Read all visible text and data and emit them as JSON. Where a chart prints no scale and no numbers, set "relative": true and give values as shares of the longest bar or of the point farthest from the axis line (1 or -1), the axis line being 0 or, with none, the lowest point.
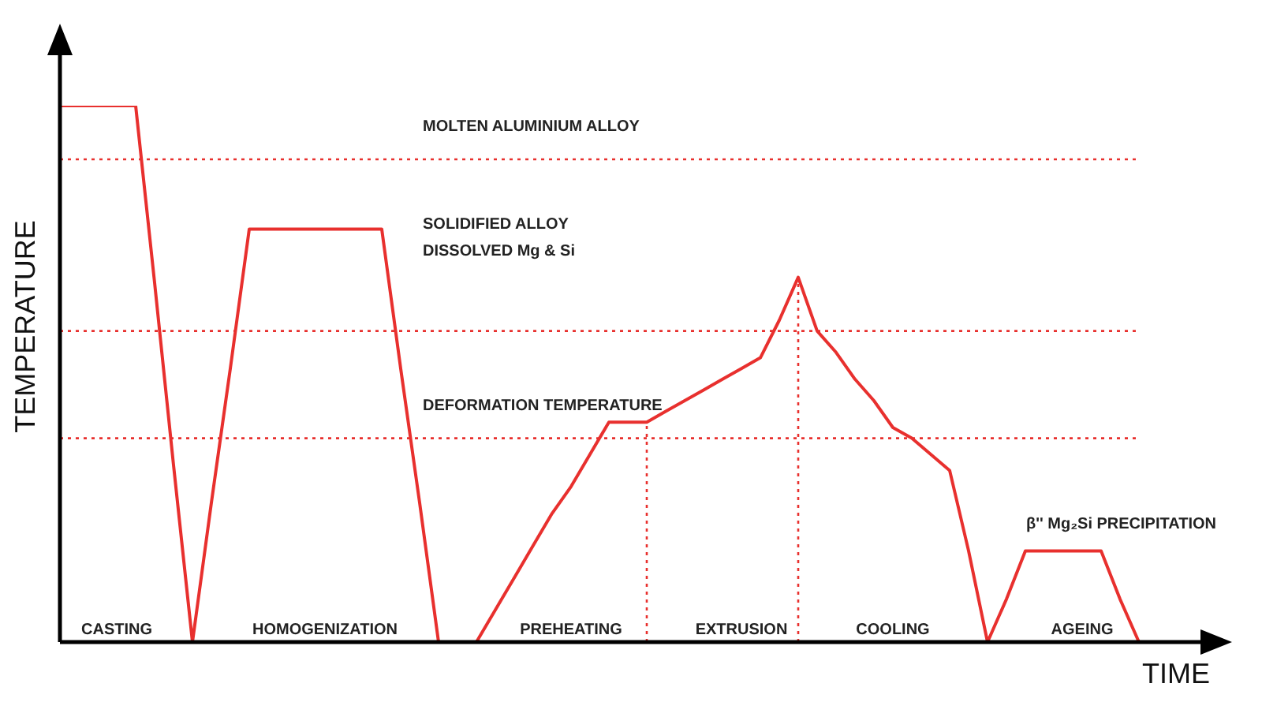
{
  "chart_data": {
    "type": "line",
    "relative": true,
    "xlabel": "TIME",
    "ylabel": "TEMPERATURE",
    "legend": false,
    "grid": false,
    "marker": "none",
    "line_style": "solid",
    "categories": [
      null,
      null,
      null,
      "CASTING",
      null,
      null,
      null,
      null,
      null,
      null,
      null,
      null,
      null,
      null,
      "HOMOGENIZATION",
      null,
      null,
      null,
      null,
      null,
      null,
      null,
      null,
      null,
      null,
      null,
      null,
      "PREHEATING",
      null,
      null,
      null,
      null,
      null,
      null,
      null,
      null,
      "EXTRUSION",
      null,
      null,
      null,
      null,
      null,
      null,
      null,
      "COOLING",
      null,
      null,
      null,
      null,
      null,
      null,
      null,
      null,
      null,
      "AGEING",
      null,
      null,
      null
    ],
    "series": [
      {
        "color": "#e8302e",
        "values": [
          1,
          1,
          1,
          1,
          1,
          0.67,
          0.33,
          0,
          0.26,
          0.51,
          0.77,
          0.77,
          0.77,
          0.77,
          0.77,
          0.77,
          0.77,
          0.77,
          0.51,
          0.26,
          0,
          0,
          0,
          0.06,
          0.12,
          0.18,
          0.24,
          0.29,
          0.35,
          0.41,
          0.41,
          0.41,
          0.43,
          0.45,
          0.47,
          0.49,
          0.51,
          0.53,
          0.6,
          0.68,
          0.58,
          0.54,
          0.49,
          0.45,
          0.4,
          0.38,
          0.35,
          0.32,
          0.17,
          0,
          0.08,
          0.17,
          0.17,
          0.17,
          0.17,
          0.17,
          0.08,
          0
        ]
      }
    ],
    "ref_lines": [
      {
        "axis": "y",
        "value": 0.9,
        "label": "MOLTEN ALUMINIUM ALLOY",
        "color": "#e8302e",
        "line_style": "dotted"
      },
      {
        "axis": "y",
        "value": 0.58,
        "color": "#e8302e",
        "line_style": "dotted"
      },
      {
        "axis": "y",
        "value": 0.38,
        "label": "DEFORMATION TEMPERATURE",
        "color": "#e8302e",
        "line_style": "dotted"
      }
    ],
    "annotations": [
      "SOLIDIFIED ALLOY\nDISSOLVED Mg & Si",
      "β'' Mg₂Si PRECIPITATION"
    ]
  }
}
